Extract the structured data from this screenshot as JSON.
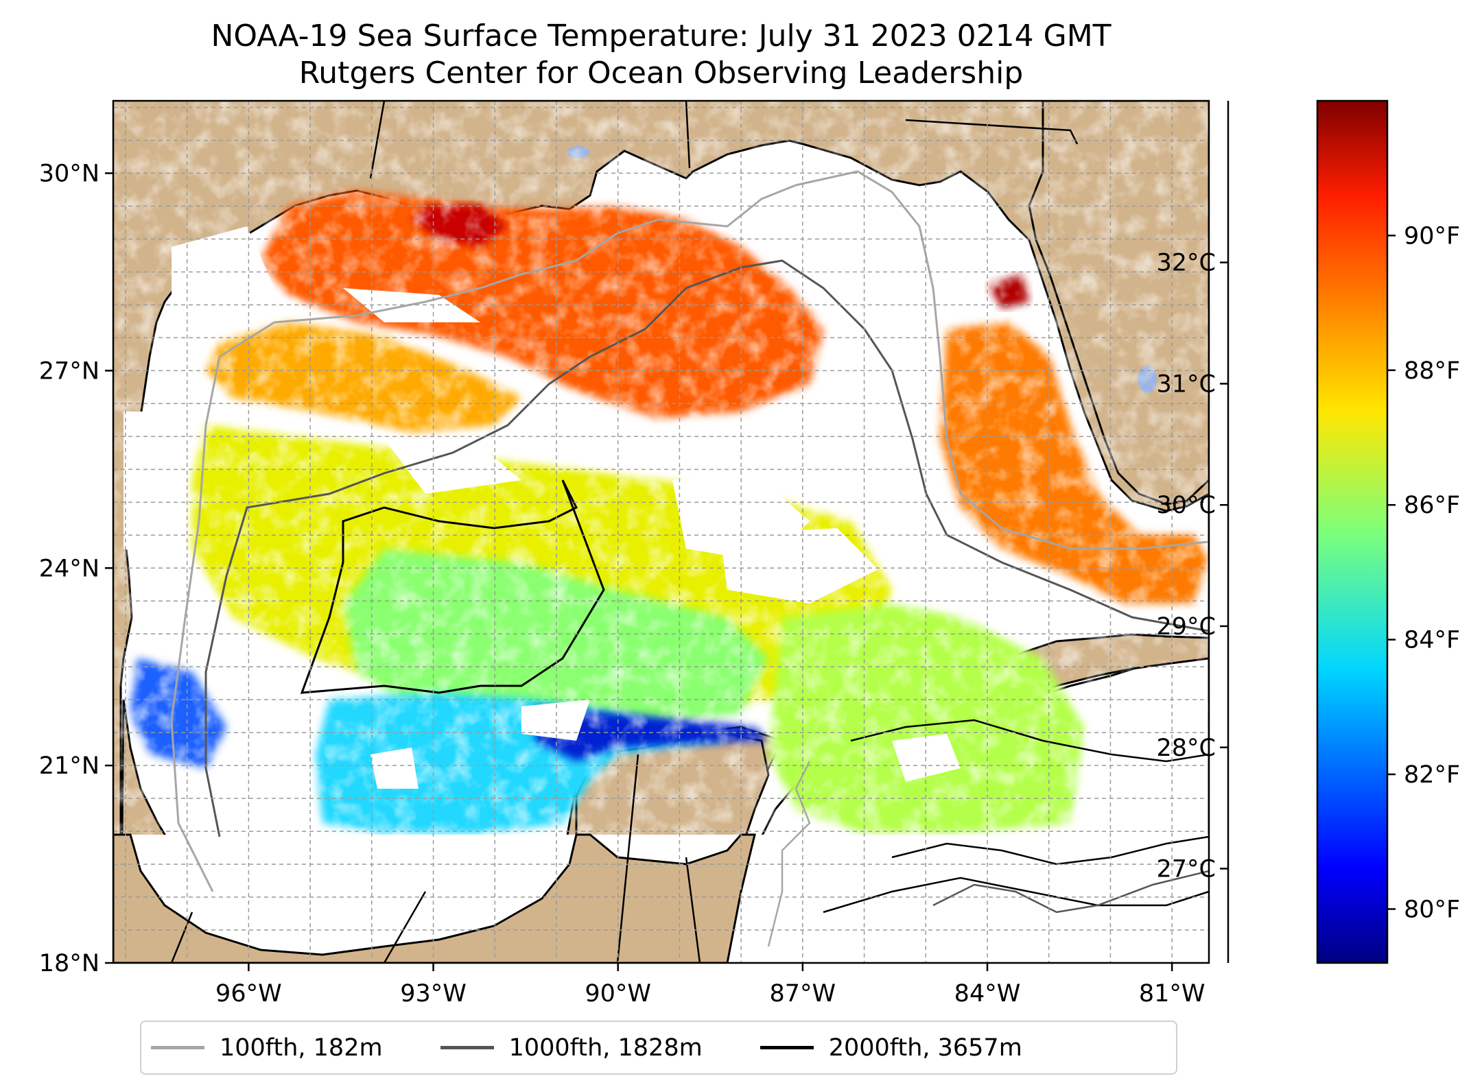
{
  "title": {
    "line1": "NOAA-19 Sea Surface Temperature: July 31 2023 0214 GMT",
    "line2": "Rutgers Center for Ocean Observing Leadership"
  },
  "map": {
    "lon_range": [
      -98.2,
      -80.4
    ],
    "lat_range": [
      18,
      31.1
    ],
    "lat_ticks": [
      {
        "value": 30,
        "label": "30°N"
      },
      {
        "value": 27,
        "label": "27°N"
      },
      {
        "value": 24,
        "label": "24°N"
      },
      {
        "value": 21,
        "label": "21°N"
      },
      {
        "value": 18,
        "label": "18°N"
      }
    ],
    "lon_ticks": [
      {
        "value": -96,
        "label": "96°W"
      },
      {
        "value": -93,
        "label": "93°W"
      },
      {
        "value": -90,
        "label": "90°W"
      },
      {
        "value": -87,
        "label": "87°W"
      },
      {
        "value": -84,
        "label": "84°W"
      },
      {
        "value": -81,
        "label": "81°W"
      }
    ],
    "gridlines": "dashed",
    "colors": {
      "land": "#d2b48c",
      "ocean_no_data": "#ffffff",
      "lakes": "#9bb4e3",
      "coastline": "#000000"
    }
  },
  "colorbar": {
    "colormap": "jet",
    "celsius_ticks": [
      {
        "value": 32,
        "label": "32°C"
      },
      {
        "value": 31,
        "label": "31°C"
      },
      {
        "value": 30,
        "label": "30°C"
      },
      {
        "value": 29,
        "label": "29°C"
      },
      {
        "value": 28,
        "label": "28°C"
      },
      {
        "value": 27,
        "label": "27°C"
      }
    ],
    "fahrenheit_ticks": [
      {
        "value": 90,
        "label": "90°F"
      },
      {
        "value": 88,
        "label": "88°F"
      },
      {
        "value": 86,
        "label": "86°F"
      },
      {
        "value": 84,
        "label": "84°F"
      },
      {
        "value": 82,
        "label": "82°F"
      },
      {
        "value": 80,
        "label": "80°F"
      }
    ]
  },
  "legend": {
    "items": [
      {
        "label": "100fth, 182m",
        "color": "#a6a6a6"
      },
      {
        "label": "1000fth, 1828m",
        "color": "#555555"
      },
      {
        "label": "2000fth, 3657m",
        "color": "#000000"
      }
    ]
  }
}
